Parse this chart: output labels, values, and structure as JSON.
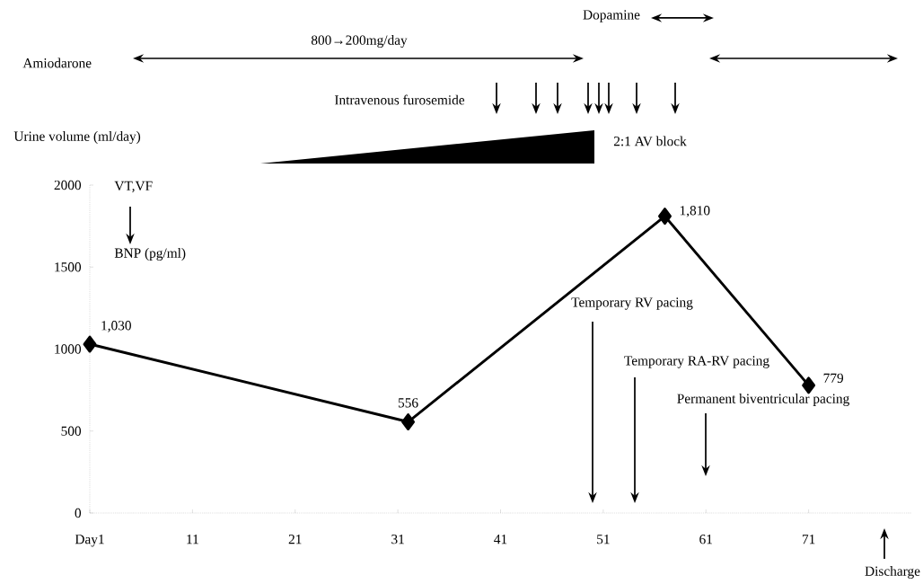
{
  "chart_data": {
    "type": "line",
    "x": [
      1,
      32,
      57,
      71
    ],
    "values": [
      1030,
      556,
      1810,
      779
    ],
    "value_labels": [
      "1,030",
      "556",
      "1,810",
      "779"
    ],
    "color": "#000000",
    "marker": "diamond",
    "line_style": "solid",
    "grid": false,
    "xlim": [
      1,
      81
    ],
    "ylim": [
      0,
      2000
    ],
    "xticks": [
      {
        "value": 1,
        "label": "Day1"
      },
      11,
      21,
      31,
      41,
      51,
      61,
      71
    ],
    "yticks": [
      0,
      500,
      1000,
      1500,
      2000
    ],
    "ylabel": "BNP (pg/ml)",
    "annotations": [
      "Amiodarone",
      "800→200mg/day",
      "Dopamine",
      "Intravenous furosemide",
      "Urine volume (ml/day)",
      "2:1 AV block",
      "VT,VF",
      "Temporary RV pacing",
      "Temporary RA-RV pacing",
      "Permanent biventricular pacing",
      "Discharge"
    ]
  }
}
